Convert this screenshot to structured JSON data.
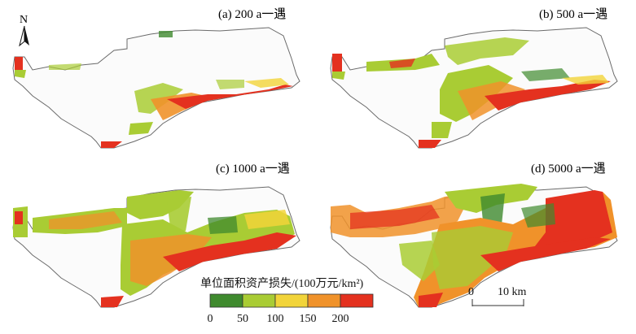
{
  "panels": [
    {
      "title": "(a) 200 a一遇"
    },
    {
      "title": "(b) 500 a一遇"
    },
    {
      "title": "(c) 1000 a一遇"
    },
    {
      "title": "(d) 5000 a一遇"
    }
  ],
  "north_arrow": {
    "label": "N"
  },
  "legend": {
    "title": "单位面积资产损失/(100万元/km²)",
    "ticks": [
      "0",
      "50",
      "100",
      "150",
      "200"
    ],
    "colors": [
      "#3f8a2e",
      "#a9cc34",
      "#f2d43a",
      "#f0922a",
      "#e4311f"
    ]
  },
  "scale_bar": {
    "start_label": "0",
    "end_label": "10 km"
  }
}
